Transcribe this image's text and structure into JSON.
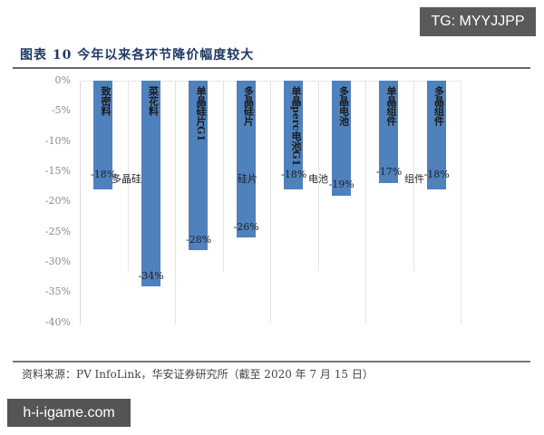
{
  "watermarks": {
    "top_right": "TG: MYYJJPP",
    "bottom_left": "h-i-igame.com"
  },
  "header": {
    "title": "图表 10 今年以来各环节降价幅度较大"
  },
  "footer": {
    "source": "资料来源：PV InfoLink，华安证券研究所（截至 2020 年 7 月 15 日）"
  },
  "colors": {
    "bar": "#4f81bd",
    "title": "#1f3864",
    "tick": "#8a8a8a"
  },
  "chart_data": {
    "type": "bar",
    "title": "图表 10 今年以来各环节降价幅度较大",
    "xlabel": "",
    "ylabel": "",
    "ylim": [
      -40,
      0
    ],
    "yticks": [
      "0%",
      "-5%",
      "-10%",
      "-15%",
      "-20%",
      "-25%",
      "-30%",
      "-35%",
      "-40%"
    ],
    "categories": [
      "致密料",
      "菜花料",
      "单晶硅片G1",
      "多晶硅片",
      "单晶perc电池G1",
      "多晶电池",
      "单晶组件",
      "多晶组件"
    ],
    "values": [
      -18,
      -34,
      -28,
      -26,
      -18,
      -19,
      -17,
      -18
    ],
    "value_labels": [
      "-18%",
      "-34%",
      "-28%",
      "-26%",
      "-18%",
      "-19%",
      "-17%",
      "-18%"
    ],
    "groups": [
      {
        "name": "多晶硅",
        "categories": [
          "致密料",
          "菜花料"
        ]
      },
      {
        "name": "硅片",
        "categories": [
          "单晶硅片G1",
          "多晶硅片"
        ]
      },
      {
        "name": "电池",
        "categories": [
          "单晶perc电池G1",
          "多晶电池"
        ]
      },
      {
        "name": "组件",
        "categories": [
          "单晶组件",
          "多晶组件"
        ]
      }
    ],
    "grid": true,
    "legend": "none"
  }
}
